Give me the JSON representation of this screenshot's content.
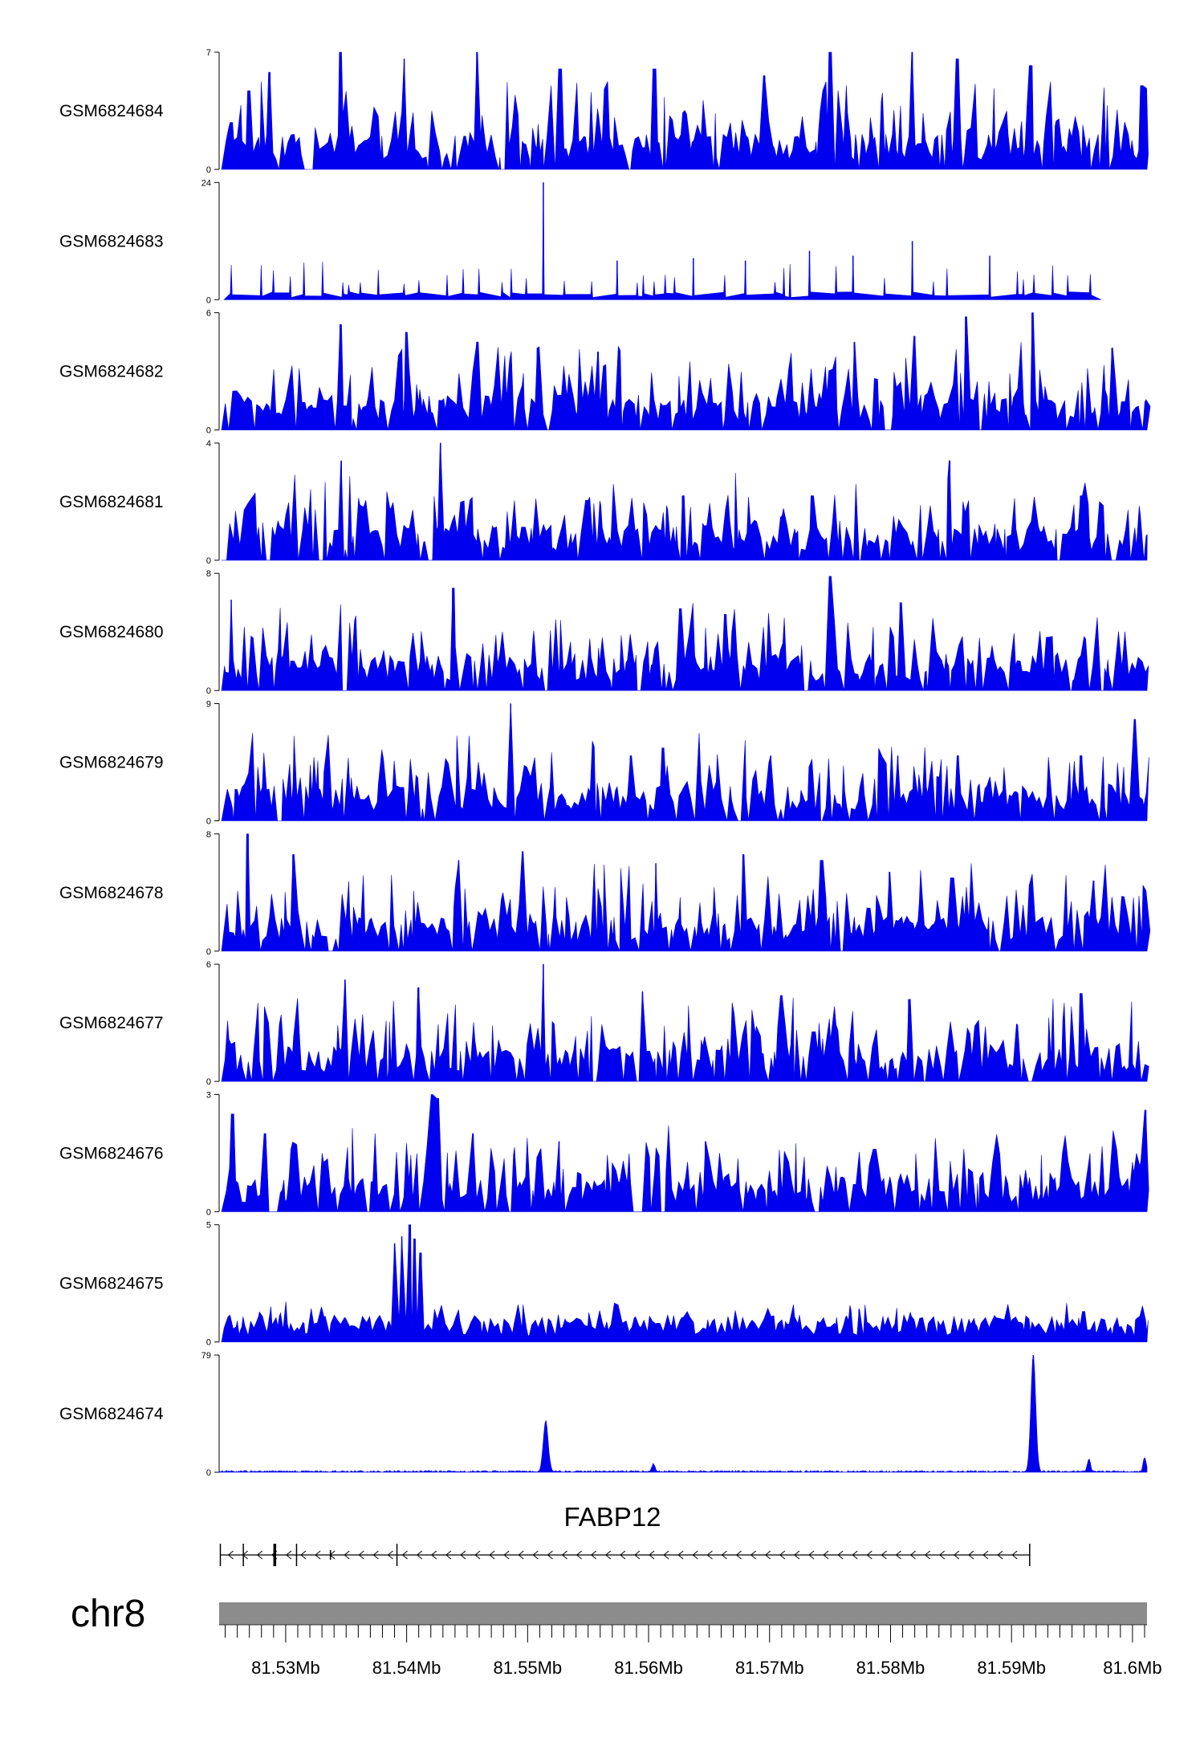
{
  "chart_data": {
    "type": "area",
    "title": "",
    "genome": {
      "chromosome": "chr8",
      "xlim_mb": [
        81.5245,
        81.6012
      ],
      "tick_labels": [
        "81.53Mb",
        "81.54Mb",
        "81.55Mb",
        "81.56Mb",
        "81.57Mb",
        "81.58Mb",
        "81.59Mb",
        "81.6Mb"
      ],
      "tick_values_mb": [
        81.53,
        81.54,
        81.55,
        81.56,
        81.57,
        81.58,
        81.59,
        81.6
      ],
      "minor_tick_step_mb": 0.001
    },
    "fill_color": "#0000ee",
    "series": [
      {
        "name": "GSM6824684",
        "ymin": 0,
        "ymax": 7,
        "ymax_label": "7",
        "ymin_label": "0",
        "style": "dense",
        "peaks": [
          [
            81.5255,
            2.8
          ],
          [
            81.527,
            4.7
          ],
          [
            81.5287,
            5.8
          ],
          [
            81.5345,
            7.0
          ],
          [
            81.5398,
            6.6
          ],
          [
            81.5458,
            7.0
          ],
          [
            81.5527,
            6.0
          ],
          [
            81.5605,
            6.0
          ],
          [
            81.5696,
            5.6
          ],
          [
            81.575,
            7.0
          ],
          [
            81.5818,
            7.0
          ],
          [
            81.5855,
            6.6
          ],
          [
            81.5916,
            6.2
          ],
          [
            81.6008,
            5.0
          ]
        ]
      },
      {
        "name": "GSM6824683",
        "ymin": 0,
        "ymax": 24,
        "ymax_label": "24",
        "ymin_label": "0",
        "style": "sparse",
        "peaks": [
          [
            81.5513,
            24.0
          ],
          [
            81.5574,
            8.0
          ],
          [
            81.5637,
            8.5
          ],
          [
            81.568,
            8.0
          ],
          [
            81.5733,
            10.0
          ],
          [
            81.5769,
            9.0
          ],
          [
            81.5818,
            12.0
          ],
          [
            81.5882,
            9.0
          ]
        ],
        "end_mb": 81.5974
      },
      {
        "name": "GSM6824682",
        "ymin": 0,
        "ymax": 6,
        "ymax_label": "6",
        "ymin_label": "0",
        "style": "dense",
        "peaks": [
          [
            81.5345,
            5.4
          ],
          [
            81.54,
            5.0
          ],
          [
            81.5458,
            4.5
          ],
          [
            81.5508,
            4.2
          ],
          [
            81.5558,
            4.0
          ],
          [
            81.577,
            4.5
          ],
          [
            81.582,
            4.8
          ],
          [
            81.5862,
            5.8
          ],
          [
            81.5917,
            6.0
          ],
          [
            81.5983,
            4.2
          ]
        ]
      },
      {
        "name": "GSM6824681",
        "ymin": 0,
        "ymax": 4,
        "ymax_label": "4",
        "ymin_label": "0",
        "style": "dense",
        "peaks": [
          [
            81.5346,
            3.4
          ],
          [
            81.5428,
            4.0
          ],
          [
            81.5628,
            2.2
          ],
          [
            81.5735,
            2.2
          ],
          [
            81.5849,
            3.4
          ],
          [
            81.5957,
            2.2
          ]
        ]
      },
      {
        "name": "GSM6824680",
        "ymin": 0,
        "ymax": 8,
        "ymax_label": "8",
        "ymin_label": "0",
        "style": "dense",
        "peaks": [
          [
            81.5255,
            6.2
          ],
          [
            81.5438,
            7.0
          ],
          [
            81.5626,
            5.6
          ],
          [
            81.5664,
            5.2
          ],
          [
            81.575,
            7.8
          ],
          [
            81.5808,
            6.0
          ]
        ]
      },
      {
        "name": "GSM6824679",
        "ymin": 0,
        "ymax": 9,
        "ymax_label": "9",
        "ymin_label": "0",
        "style": "dense",
        "peaks": [
          [
            81.5486,
            9.0
          ],
          [
            81.5585,
            5.0
          ],
          [
            81.5612,
            5.6
          ],
          [
            81.5701,
            5.0
          ],
          [
            81.5806,
            5.0
          ],
          [
            81.5856,
            5.0
          ],
          [
            81.5958,
            5.0
          ],
          [
            81.6002,
            7.8
          ]
        ]
      },
      {
        "name": "GSM6824678",
        "ymin": 0,
        "ymax": 8,
        "ymax_label": "8",
        "ymin_label": "0",
        "style": "dense",
        "peaks": [
          [
            81.5269,
            8.0
          ],
          [
            81.5306,
            6.6
          ],
          [
            81.5443,
            6.2
          ],
          [
            81.5496,
            6.8
          ],
          [
            81.5606,
            6.0
          ],
          [
            81.5678,
            6.6
          ],
          [
            81.5743,
            6.2
          ],
          [
            81.5799,
            5.4
          ],
          [
            81.5851,
            5.0
          ],
          [
            81.5968,
            4.8
          ]
        ]
      },
      {
        "name": "GSM6824677",
        "ymin": 0,
        "ymax": 6,
        "ymax_label": "6",
        "ymin_label": "0",
        "style": "dense",
        "peaks": [
          [
            81.5349,
            5.2
          ],
          [
            81.541,
            4.8
          ],
          [
            81.5513,
            6.0
          ],
          [
            81.5595,
            4.6
          ],
          [
            81.571,
            4.4
          ],
          [
            81.5815,
            4.2
          ],
          [
            81.5957,
            4.5
          ]
        ]
      },
      {
        "name": "GSM6824676",
        "ymin": 0,
        "ymax": 3,
        "ymax_label": "3",
        "ymin_label": "0",
        "style": "dense",
        "peaks": [
          [
            81.5256,
            2.5
          ],
          [
            81.5283,
            2.0
          ],
          [
            81.5421,
            3.0
          ],
          [
            81.5426,
            2.9
          ],
          [
            81.5455,
            2.0
          ],
          [
            81.5526,
            1.8
          ],
          [
            81.5647,
            1.8
          ],
          [
            81.5787,
            1.6
          ],
          [
            81.6011,
            2.6
          ]
        ]
      },
      {
        "name": "GSM6824675",
        "ymin": 0,
        "ymax": 5,
        "ymax_label": "5",
        "ymin_label": "0",
        "style": "low",
        "peaks": [
          [
            81.539,
            4.2
          ],
          [
            81.5396,
            4.5
          ],
          [
            81.5402,
            5.0
          ],
          [
            81.5407,
            4.4
          ],
          [
            81.5412,
            3.8
          ],
          [
            81.5574,
            1.6
          ],
          [
            81.5774,
            1.4
          ],
          [
            81.596,
            1.3
          ]
        ]
      },
      {
        "name": "GSM6824674",
        "ymin": 0,
        "ymax": 79,
        "ymax_label": "79",
        "ymin_label": "0",
        "style": "peaky",
        "peaks": [
          [
            81.5515,
            34.0
          ],
          [
            81.5604,
            5.0
          ],
          [
            81.5918,
            79.0
          ],
          [
            81.5964,
            8.0
          ],
          [
            81.601,
            9.0
          ]
        ]
      }
    ],
    "gene": {
      "name": "FABP12",
      "strand": "-",
      "start_mb": 81.5246,
      "end_mb": 81.5915,
      "exons_mb": [
        81.5246,
        81.5265,
        81.5291,
        81.5309,
        81.5337,
        81.5392
      ]
    }
  }
}
